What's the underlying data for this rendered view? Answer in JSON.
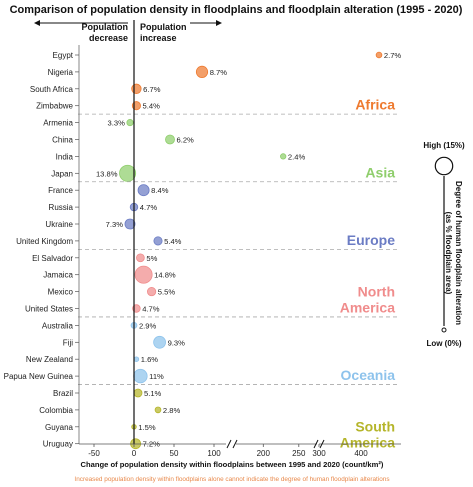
{
  "chart_data": {
    "type": "scatter",
    "title": "Comparison of population density in floodplains and floodplain alteration (1995 - 2020)",
    "header_left": [
      "Population",
      "decrease"
    ],
    "header_right": [
      "Population",
      "increase"
    ],
    "xlabel": "Change of population density within floodplains between 1995 and 2020 (count/km²)",
    "note": "Increased population density within floodplains alone cannot indicate the degree of human floodplain alterations",
    "x_ticks": [
      "-50",
      "0",
      "50",
      "100",
      "200",
      "250",
      "300",
      "400"
    ],
    "legend": {
      "title": "Degree of human floodplain alteration (as % floodplain area)",
      "title_lines": [
        "Degree of human floodplain alteration",
        "(as % floodplain area)"
      ],
      "high": "High (15%)",
      "low": "Low (0%)"
    },
    "regions": [
      {
        "name": "Africa",
        "name_lines": [
          "Africa"
        ],
        "color": "#ee7a2f",
        "points": [
          {
            "country": "Egypt",
            "x": 410,
            "alteration": "2.7%"
          },
          {
            "country": "Nigeria",
            "x": 85,
            "alteration": "8.7%"
          },
          {
            "country": "South Africa",
            "x": 3,
            "alteration": "6.7%"
          },
          {
            "country": "Zimbabwe",
            "x": 3,
            "alteration": "5.4%"
          }
        ]
      },
      {
        "name": "Asia",
        "name_lines": [
          "Asia"
        ],
        "color": "#8fce6c",
        "points": [
          {
            "country": "Armenia",
            "x": -5,
            "alteration": "3.3%"
          },
          {
            "country": "China",
            "x": 45,
            "alteration": "6.2%"
          },
          {
            "country": "India",
            "x": 228,
            "alteration": "2.4%"
          },
          {
            "country": "Japan",
            "x": -8,
            "alteration": "13.8%"
          }
        ]
      },
      {
        "name": "Europe",
        "name_lines": [
          "Europe"
        ],
        "color": "#6b7cc4",
        "points": [
          {
            "country": "France",
            "x": 12,
            "alteration": "8.4%"
          },
          {
            "country": "Russia",
            "x": 0,
            "alteration": "4.7%"
          },
          {
            "country": "Ukraine",
            "x": -5,
            "alteration": "7.3%"
          },
          {
            "country": "United Kingdom",
            "x": 30,
            "alteration": "5.4%"
          }
        ]
      },
      {
        "name": "North America",
        "name_lines": [
          "North",
          "America"
        ],
        "color": "#f08c8c",
        "points": [
          {
            "country": "El Salvador",
            "x": 8,
            "alteration": "5%"
          },
          {
            "country": "Jamaica",
            "x": 12,
            "alteration": "14.8%"
          },
          {
            "country": "Mexico",
            "x": 22,
            "alteration": "5.5%"
          },
          {
            "country": "United States",
            "x": 3,
            "alteration": "4.7%"
          }
        ]
      },
      {
        "name": "Oceania",
        "name_lines": [
          "Oceania"
        ],
        "color": "#8ec3ec",
        "points": [
          {
            "country": "Australia",
            "x": 0,
            "alteration": "2.9%"
          },
          {
            "country": "Fiji",
            "x": 32,
            "alteration": "9.3%"
          },
          {
            "country": "New Zealand",
            "x": 3,
            "alteration": "1.6%"
          },
          {
            "country": "Papua New Guinea",
            "x": 8,
            "alteration": "11%"
          }
        ]
      },
      {
        "name": "South America",
        "name_lines": [
          "South",
          "America"
        ],
        "color": "#b5b52a",
        "points": [
          {
            "country": "Brazil",
            "x": 5,
            "alteration": "5.1%"
          },
          {
            "country": "Colombia",
            "x": 30,
            "alteration": "2.8%"
          },
          {
            "country": "Guyana",
            "x": 0,
            "alteration": "1.5%"
          },
          {
            "country": "Uruguay",
            "x": 2,
            "alteration": "7.2%"
          }
        ]
      }
    ]
  }
}
